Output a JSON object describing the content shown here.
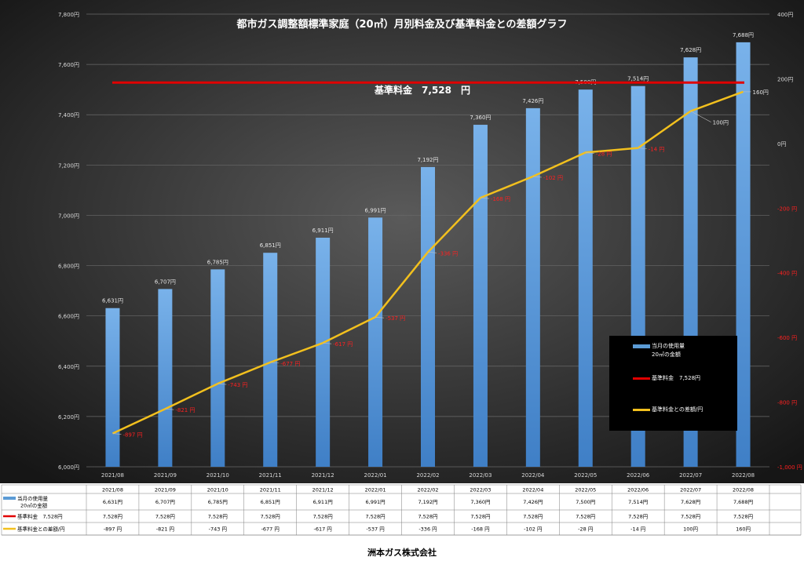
{
  "chart_data": {
    "type": "bar",
    "title": "都市ガス調整額標準家庭（20㎥）月別料金及び基準料金との差額グラフ",
    "categories": [
      "2021/08",
      "2021/09",
      "2021/10",
      "2021/11",
      "2021/12",
      "2022/01",
      "2022/02",
      "2022/03",
      "2022/04",
      "2022/05",
      "2022/06",
      "2022/07",
      "2022/08"
    ],
    "series": [
      {
        "name": "当月の使用量20㎥の金額",
        "type": "bar",
        "axis": "left",
        "color": "#5b9bd5",
        "values": [
          6631,
          6707,
          6785,
          6851,
          6911,
          6991,
          7192,
          7360,
          7426,
          7500,
          7514,
          7628,
          7688
        ],
        "labels": [
          "6,631円",
          "6,707円",
          "6,785円",
          "6,851円",
          "6,911円",
          "6,991円",
          "7,192円",
          "7,360円",
          "7,426円",
          "7,500円",
          "7,514円",
          "7,628円",
          "7,688円"
        ]
      },
      {
        "name": "基準料金 7,528円",
        "type": "line",
        "axis": "left",
        "color": "#e00000",
        "values": [
          7528,
          7528,
          7528,
          7528,
          7528,
          7528,
          7528,
          7528,
          7528,
          7528,
          7528,
          7528,
          7528
        ]
      },
      {
        "name": "基準料金との差額/円",
        "type": "line",
        "axis": "right",
        "color": "#f2c01e",
        "values": [
          -897,
          -821,
          -743,
          -677,
          -617,
          -537,
          -336,
          -168,
          -102,
          -28,
          -14,
          100,
          160
        ],
        "labels": [
          "-897 円",
          "-821 円",
          "-743 円",
          "-677 円",
          "-617 円",
          "-537 円",
          "-336 円",
          "-168 円",
          "-102 円",
          "-28 円",
          "-14 円",
          "100円",
          "160円"
        ]
      }
    ],
    "y_left": {
      "min": 6000,
      "max": 7800,
      "step": 200,
      "ticks": [
        "6,000円",
        "6,200円",
        "6,400円",
        "6,600円",
        "6,800円",
        "7,000円",
        "7,200円",
        "7,400円",
        "7,600円",
        "7,800円"
      ]
    },
    "y_right": {
      "min": -1000,
      "max": 400,
      "step": 200,
      "ticks": [
        "-1,000 円",
        "-800 円",
        "-600 円",
        "-400 円",
        "-200 円",
        "0円",
        "200円",
        "400円"
      ]
    },
    "base_label": "基準料金　7,528　円",
    "legend": {
      "placement": "right",
      "items": [
        {
          "line1": "当月の使用量",
          "line2": "20㎥の金額",
          "color": "#5b9bd5",
          "kind": "bar"
        },
        {
          "line1": "基準料金　7,528円",
          "line2": "",
          "color": "#e00000",
          "kind": "line"
        },
        {
          "line1": "基準料金との差額/円",
          "line2": "",
          "color": "#f2c01e",
          "kind": "line"
        }
      ]
    },
    "table": {
      "rows": [
        {
          "line1": "当月の使用量",
          "line2": "20㎥の金額",
          "color": "#5b9bd5",
          "kind": "bar",
          "cells": [
            "6,631円",
            "6,707円",
            "6,785円",
            "6,851円",
            "6,911円",
            "6,991円",
            "7,192円",
            "7,360円",
            "7,426円",
            "7,500円",
            "7,514円",
            "7,628円",
            "7,688円"
          ]
        },
        {
          "line1": "基準料金　7,528円",
          "line2": "",
          "color": "#e00000",
          "kind": "line",
          "cells": [
            "7,528円",
            "7,528円",
            "7,528円",
            "7,528円",
            "7,528円",
            "7,528円",
            "7,528円",
            "7,528円",
            "7,528円",
            "7,528円",
            "7,528円",
            "7,528円",
            "7,528円"
          ]
        },
        {
          "line1": "基準料金との差額/円",
          "line2": "",
          "color": "#f2c01e",
          "kind": "line",
          "cells": [
            "-897 円",
            "-821 円",
            "-743 円",
            "-677 円",
            "-617 円",
            "-537 円",
            "-336 円",
            "-168 円",
            "-102 円",
            "-28 円",
            "-14 円",
            "100円",
            "160円"
          ]
        }
      ]
    }
  },
  "footer": {
    "company": "洲本ガス株式会社"
  }
}
